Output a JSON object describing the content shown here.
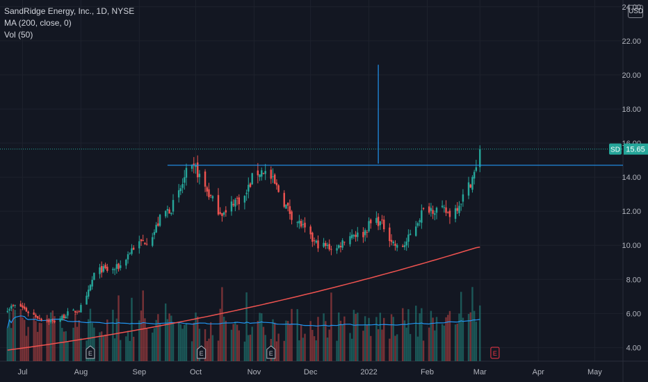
{
  "header": {
    "title": "SandRidge Energy, Inc., 1D, NYSE",
    "ma_label": "MA (200, close, 0)",
    "vol_label": "Vol (50)",
    "currency": "USD"
  },
  "price_tag": {
    "symbol": "SD",
    "value": "15.65"
  },
  "colors": {
    "background": "#131722",
    "up": "#26a69a",
    "down": "#ef5350",
    "ma": "#f05350",
    "vol_ma": "#2196f3",
    "hline": "#2196f3",
    "earnings_up": "#26a69a",
    "earnings_next": "#f23645"
  },
  "chart_data": {
    "type": "candlestick",
    "title": "SandRidge Energy, Inc., 1D, NYSE",
    "y_ticks": [
      "4.00",
      "6.00",
      "8.00",
      "10.00",
      "12.00",
      "14.00",
      "16.00",
      "18.00",
      "20.00",
      "22.00",
      "24.00"
    ],
    "ylim": [
      3.2,
      24.4
    ],
    "x_ticks": [
      {
        "label": "Jul",
        "day": 8
      },
      {
        "label": "Aug",
        "day": 39
      },
      {
        "label": "Sep",
        "day": 70
      },
      {
        "label": "Oct",
        "day": 100
      },
      {
        "label": "Nov",
        "day": 131
      },
      {
        "label": "Dec",
        "day": 161
      },
      {
        "label": "2022",
        "day": 192
      },
      {
        "label": "Feb",
        "day": 223
      },
      {
        "label": "Mar",
        "day": 251
      },
      {
        "label": "Apr",
        "day": 282
      },
      {
        "label": "May",
        "day": 312
      }
    ],
    "xlim": [
      -4,
      327
    ],
    "last_close": 15.65,
    "horizontal_line": 14.7,
    "vertical_marker": {
      "day": 197,
      "from": 14.8,
      "to": 20.6
    },
    "price_anchors": [
      [
        0,
        6.3
      ],
      [
        6,
        6.5
      ],
      [
        12,
        6.0
      ],
      [
        18,
        5.7
      ],
      [
        24,
        5.5
      ],
      [
        28,
        5.7
      ],
      [
        32,
        6.0
      ],
      [
        38,
        6.2
      ],
      [
        42,
        6.9
      ],
      [
        46,
        8.3
      ],
      [
        50,
        8.6
      ],
      [
        55,
        8.5
      ],
      [
        60,
        8.8
      ],
      [
        66,
        9.8
      ],
      [
        70,
        10.1
      ],
      [
        74,
        10.3
      ],
      [
        78,
        10.8
      ],
      [
        82,
        11.8
      ],
      [
        87,
        12.2
      ],
      [
        91,
        13.0
      ],
      [
        95,
        14.2
      ],
      [
        100,
        14.5
      ],
      [
        104,
        13.6
      ],
      [
        108,
        12.8
      ],
      [
        112,
        12.1
      ],
      [
        116,
        11.8
      ],
      [
        120,
        12.6
      ],
      [
        126,
        12.8
      ],
      [
        131,
        14.2
      ],
      [
        136,
        14.4
      ],
      [
        140,
        13.9
      ],
      [
        144,
        13.2
      ],
      [
        148,
        12.3
      ],
      [
        152,
        11.6
      ],
      [
        156,
        11.2
      ],
      [
        160,
        10.5
      ],
      [
        164,
        10.1
      ],
      [
        170,
        9.9
      ],
      [
        175,
        9.8
      ],
      [
        180,
        10.5
      ],
      [
        184,
        10.7
      ],
      [
        188,
        10.5
      ],
      [
        192,
        11.2
      ],
      [
        196,
        11.5
      ],
      [
        200,
        11.1
      ],
      [
        204,
        10.3
      ],
      [
        208,
        9.7
      ],
      [
        212,
        10.2
      ],
      [
        216,
        11.0
      ],
      [
        220,
        11.9
      ],
      [
        224,
        12.2
      ],
      [
        228,
        12.1
      ],
      [
        232,
        12.0
      ],
      [
        236,
        11.8
      ],
      [
        240,
        12.5
      ],
      [
        244,
        13.2
      ],
      [
        247,
        14.0
      ],
      [
        250,
        14.6
      ],
      [
        251,
        15.65
      ]
    ],
    "ma200": {
      "start": [
        0,
        3.85
      ],
      "end": [
        251,
        9.9
      ]
    },
    "volume_note": "Volume bars with 50-period volume MA overlay at chart bottom",
    "earnings_markers": [
      {
        "label": "E",
        "day": 44
      },
      {
        "label": "E",
        "day": 103
      },
      {
        "label": "E",
        "day": 140
      },
      {
        "label": "E",
        "day": 259
      }
    ]
  }
}
